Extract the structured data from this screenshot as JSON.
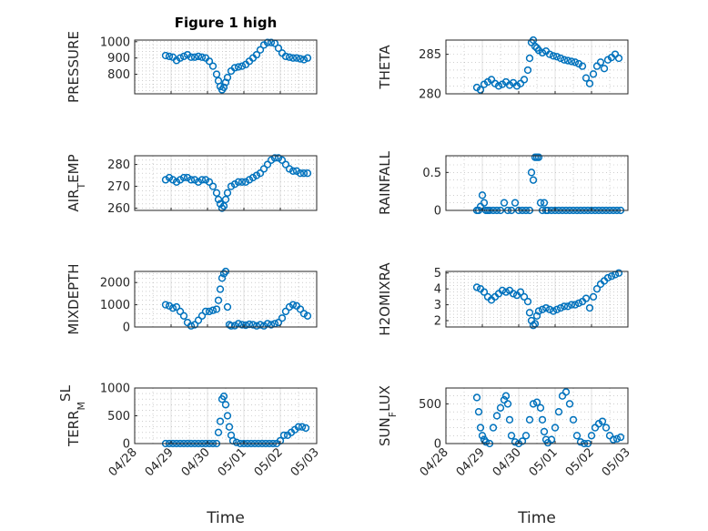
{
  "chart_data": [
    {
      "id": "pressure",
      "type": "scatter",
      "title": "Figure 1 high",
      "ylabel": "PRESSURE",
      "ylim": [
        680,
        1010
      ],
      "yticks": [
        800,
        900,
        1000
      ],
      "xlim": [
        0,
        5
      ],
      "xticks": [
        0,
        1,
        2,
        3,
        4,
        5
      ],
      "xticklabels": [
        "04/28",
        "04/29",
        "04/30",
        "05/01",
        "05/02",
        "05/03"
      ],
      "show_xticklabels": false,
      "x": [
        0.85,
        0.95,
        1.05,
        1.15,
        1.25,
        1.35,
        1.45,
        1.55,
        1.65,
        1.75,
        1.85,
        1.95,
        2.05,
        2.15,
        2.25,
        2.3,
        2.35,
        2.4,
        2.45,
        2.5,
        2.55,
        2.65,
        2.75,
        2.85,
        2.95,
        3.05,
        3.15,
        3.25,
        3.35,
        3.45,
        3.55,
        3.65,
        3.75,
        3.85,
        3.95,
        4.05,
        4.15,
        4.25,
        4.35,
        4.45,
        4.55,
        4.65,
        4.75
      ],
      "y": [
        915,
        910,
        905,
        885,
        900,
        910,
        920,
        905,
        905,
        910,
        905,
        900,
        880,
        850,
        800,
        760,
        725,
        705,
        720,
        750,
        780,
        820,
        840,
        845,
        850,
        860,
        880,
        900,
        920,
        950,
        980,
        995,
        995,
        990,
        960,
        930,
        910,
        905,
        900,
        900,
        895,
        890,
        900
      ],
      "color": "#0072bd"
    },
    {
      "id": "theta",
      "type": "scatter",
      "ylabel": "THETA",
      "ylim": [
        280,
        286.8
      ],
      "yticks": [
        280,
        285
      ],
      "xlim": [
        0,
        5
      ],
      "xticks": [
        0,
        1,
        2,
        3,
        4,
        5
      ],
      "show_xticklabels": false,
      "x": [
        0.85,
        0.95,
        1.05,
        1.15,
        1.25,
        1.35,
        1.45,
        1.55,
        1.65,
        1.75,
        1.85,
        1.95,
        2.05,
        2.15,
        2.25,
        2.3,
        2.35,
        2.4,
        2.45,
        2.5,
        2.55,
        2.65,
        2.75,
        2.85,
        2.95,
        3.05,
        3.15,
        3.25,
        3.35,
        3.45,
        3.55,
        3.65,
        3.75,
        3.85,
        3.95,
        4.05,
        4.15,
        4.25,
        4.35,
        4.45,
        4.55,
        4.65,
        4.75
      ],
      "y": [
        280.8,
        280.5,
        281.2,
        281.5,
        281.8,
        281.3,
        281.0,
        281.2,
        281.5,
        281.1,
        281.4,
        281.0,
        281.3,
        281.8,
        283.0,
        284.5,
        286.5,
        286.8,
        286.0,
        285.8,
        285.5,
        285.2,
        285.4,
        285.0,
        284.8,
        284.7,
        284.5,
        284.3,
        284.2,
        284.1,
        284.0,
        283.8,
        283.5,
        282.0,
        281.3,
        282.5,
        283.5,
        284.0,
        283.2,
        284.3,
        284.6,
        285.0,
        284.5
      ],
      "color": "#0072bd"
    },
    {
      "id": "air_temp",
      "type": "scatter",
      "ylabel": "AIR_TEMP",
      "ylim": [
        259,
        284
      ],
      "yticks": [
        260,
        270,
        280
      ],
      "xlim": [
        0,
        5
      ],
      "xticks": [
        0,
        1,
        2,
        3,
        4,
        5
      ],
      "show_xticklabels": false,
      "x": [
        0.85,
        0.95,
        1.05,
        1.15,
        1.25,
        1.35,
        1.45,
        1.55,
        1.65,
        1.75,
        1.85,
        1.95,
        2.05,
        2.15,
        2.25,
        2.3,
        2.35,
        2.4,
        2.45,
        2.5,
        2.55,
        2.65,
        2.75,
        2.85,
        2.95,
        3.05,
        3.15,
        3.25,
        3.35,
        3.45,
        3.55,
        3.65,
        3.75,
        3.85,
        3.95,
        4.05,
        4.15,
        4.25,
        4.35,
        4.45,
        4.55,
        4.65,
        4.75
      ],
      "y": [
        273,
        274,
        273,
        272,
        273,
        274,
        274,
        273,
        273,
        272,
        273,
        273,
        272,
        270,
        267,
        264,
        262,
        260,
        261,
        264,
        267,
        270,
        271,
        272,
        272,
        272,
        273,
        274,
        275,
        276,
        278,
        280,
        282,
        283,
        283,
        282,
        280,
        278,
        277,
        277,
        276,
        276,
        276
      ],
      "color": "#0072bd"
    },
    {
      "id": "rainfall",
      "type": "scatter",
      "ylabel": "RAINFALL",
      "ylim": [
        0,
        0.72
      ],
      "yticks": [
        0,
        0.5
      ],
      "xlim": [
        0,
        5
      ],
      "xticks": [
        0,
        1,
        2,
        3,
        4,
        5
      ],
      "show_xticklabels": false,
      "x": [
        0.85,
        0.9,
        0.95,
        1.0,
        1.05,
        1.1,
        1.15,
        1.2,
        1.3,
        1.4,
        1.5,
        1.6,
        1.7,
        1.8,
        1.9,
        2.0,
        2.1,
        2.2,
        2.3,
        2.35,
        2.4,
        2.45,
        2.5,
        2.55,
        2.6,
        2.65,
        2.7,
        2.75,
        2.8,
        2.9,
        3.0,
        3.1,
        3.2,
        3.3,
        3.4,
        3.5,
        3.6,
        3.7,
        3.8,
        3.9,
        4.0,
        4.1,
        4.2,
        4.3,
        4.4,
        4.5,
        4.6,
        4.7,
        4.8
      ],
      "y": [
        0,
        0,
        0.05,
        0.2,
        0.1,
        0,
        0,
        0,
        0,
        0,
        0,
        0.1,
        0,
        0,
        0.1,
        0,
        0,
        0,
        0,
        0.5,
        0.4,
        0.7,
        0.7,
        0.7,
        0.1,
        0,
        0.1,
        0,
        0,
        0,
        0,
        0,
        0,
        0,
        0,
        0,
        0,
        0,
        0,
        0,
        0,
        0,
        0,
        0,
        0,
        0,
        0,
        0,
        0
      ],
      "color": "#0072bd"
    },
    {
      "id": "mixdepth",
      "type": "scatter",
      "ylabel": "MIXDEPTH",
      "ylim": [
        0,
        2500
      ],
      "yticks": [
        0,
        1000,
        2000
      ],
      "xlim": [
        0,
        5
      ],
      "xticks": [
        0,
        1,
        2,
        3,
        4,
        5
      ],
      "show_xticklabels": false,
      "x": [
        0.85,
        0.95,
        1.05,
        1.15,
        1.25,
        1.35,
        1.45,
        1.55,
        1.65,
        1.75,
        1.85,
        1.95,
        2.05,
        2.15,
        2.25,
        2.3,
        2.35,
        2.4,
        2.45,
        2.5,
        2.55,
        2.6,
        2.65,
        2.75,
        2.85,
        2.95,
        3.05,
        3.15,
        3.25,
        3.35,
        3.45,
        3.55,
        3.65,
        3.75,
        3.85,
        3.95,
        4.05,
        4.15,
        4.25,
        4.35,
        4.45,
        4.55,
        4.65,
        4.75
      ],
      "y": [
        1000,
        950,
        850,
        900,
        700,
        500,
        200,
        50,
        100,
        300,
        500,
        700,
        700,
        750,
        800,
        1200,
        1700,
        2200,
        2400,
        2500,
        900,
        100,
        50,
        60,
        150,
        100,
        80,
        120,
        100,
        50,
        100,
        50,
        150,
        100,
        150,
        200,
        400,
        700,
        900,
        1000,
        950,
        800,
        600,
        500
      ],
      "color": "#0072bd"
    },
    {
      "id": "h2omixra",
      "type": "scatter",
      "ylabel": "H2OMIXRA",
      "ylim": [
        1.6,
        5.1
      ],
      "yticks": [
        2,
        3,
        4,
        5
      ],
      "xlim": [
        0,
        5
      ],
      "xticks": [
        0,
        1,
        2,
        3,
        4,
        5
      ],
      "show_xticklabels": false,
      "x": [
        0.85,
        0.95,
        1.05,
        1.15,
        1.25,
        1.35,
        1.45,
        1.55,
        1.65,
        1.75,
        1.85,
        1.95,
        2.05,
        2.15,
        2.25,
        2.3,
        2.35,
        2.4,
        2.45,
        2.5,
        2.55,
        2.65,
        2.75,
        2.85,
        2.95,
        3.05,
        3.15,
        3.25,
        3.35,
        3.45,
        3.55,
        3.65,
        3.75,
        3.85,
        3.95,
        4.05,
        4.15,
        4.25,
        4.35,
        4.45,
        4.55,
        4.65,
        4.75
      ],
      "y": [
        4.1,
        4.0,
        3.8,
        3.5,
        3.3,
        3.5,
        3.7,
        3.9,
        3.8,
        3.9,
        3.7,
        3.6,
        3.8,
        3.5,
        3.2,
        2.5,
        2.0,
        1.7,
        1.8,
        2.3,
        2.6,
        2.7,
        2.8,
        2.7,
        2.6,
        2.7,
        2.8,
        2.9,
        2.9,
        3.0,
        3.0,
        3.1,
        3.2,
        3.4,
        2.8,
        3.5,
        4.0,
        4.3,
        4.5,
        4.7,
        4.8,
        4.9,
        5.0
      ],
      "color": "#0072bd"
    },
    {
      "id": "terr_msl",
      "type": "scatter",
      "ylabel": "TERR_MSL",
      "ylim": [
        0,
        1000
      ],
      "yticks": [
        0,
        500,
        1000
      ],
      "xlim": [
        0,
        5
      ],
      "xticks": [
        0,
        1,
        2,
        3,
        4,
        5
      ],
      "xticklabels": [
        "04/28",
        "04/29",
        "04/30",
        "05/01",
        "05/02",
        "05/03"
      ],
      "show_xticklabels": true,
      "xlabel": "Time",
      "x": [
        0.85,
        0.95,
        1.05,
        1.15,
        1.25,
        1.35,
        1.45,
        1.55,
        1.65,
        1.75,
        1.85,
        1.95,
        2.05,
        2.15,
        2.25,
        2.3,
        2.35,
        2.4,
        2.45,
        2.5,
        2.55,
        2.6,
        2.65,
        2.7,
        2.8,
        2.9,
        3.0,
        3.1,
        3.2,
        3.3,
        3.4,
        3.5,
        3.6,
        3.7,
        3.8,
        3.9,
        4.0,
        4.1,
        4.2,
        4.3,
        4.4,
        4.5,
        4.6,
        4.7
      ],
      "y": [
        0,
        0,
        0,
        0,
        0,
        0,
        0,
        0,
        0,
        0,
        0,
        0,
        0,
        0,
        0,
        200,
        400,
        800,
        850,
        700,
        500,
        300,
        150,
        50,
        20,
        0,
        0,
        0,
        0,
        0,
        0,
        0,
        0,
        0,
        0,
        0,
        50,
        150,
        150,
        200,
        250,
        300,
        300,
        280
      ],
      "color": "#0072bd"
    },
    {
      "id": "sun_flux",
      "type": "scatter",
      "ylabel": "SUN_FLUX",
      "ylim": [
        0,
        700
      ],
      "yticks": [
        0,
        500
      ],
      "xlim": [
        0,
        5
      ],
      "xticks": [
        0,
        1,
        2,
        3,
        4,
        5
      ],
      "xticklabels": [
        "04/28",
        "04/29",
        "04/30",
        "05/01",
        "05/02",
        "05/03"
      ],
      "show_xticklabels": true,
      "xlabel": "Time",
      "x": [
        0.85,
        0.9,
        0.95,
        1.0,
        1.05,
        1.1,
        1.2,
        1.3,
        1.4,
        1.5,
        1.6,
        1.65,
        1.7,
        1.75,
        1.8,
        1.9,
        2.0,
        2.1,
        2.2,
        2.3,
        2.4,
        2.5,
        2.6,
        2.65,
        2.7,
        2.75,
        2.8,
        2.9,
        3.0,
        3.1,
        3.2,
        3.3,
        3.4,
        3.5,
        3.6,
        3.7,
        3.8,
        3.9,
        4.0,
        4.1,
        4.2,
        4.3,
        4.4,
        4.5,
        4.6,
        4.7,
        4.8
      ],
      "y": [
        580,
        400,
        200,
        100,
        50,
        20,
        0,
        200,
        350,
        450,
        550,
        600,
        500,
        300,
        100,
        20,
        0,
        30,
        100,
        300,
        500,
        520,
        450,
        300,
        150,
        50,
        10,
        50,
        200,
        400,
        600,
        650,
        500,
        300,
        100,
        20,
        0,
        0,
        100,
        200,
        250,
        280,
        200,
        100,
        50,
        60,
        80
      ],
      "color": "#0072bd"
    }
  ]
}
